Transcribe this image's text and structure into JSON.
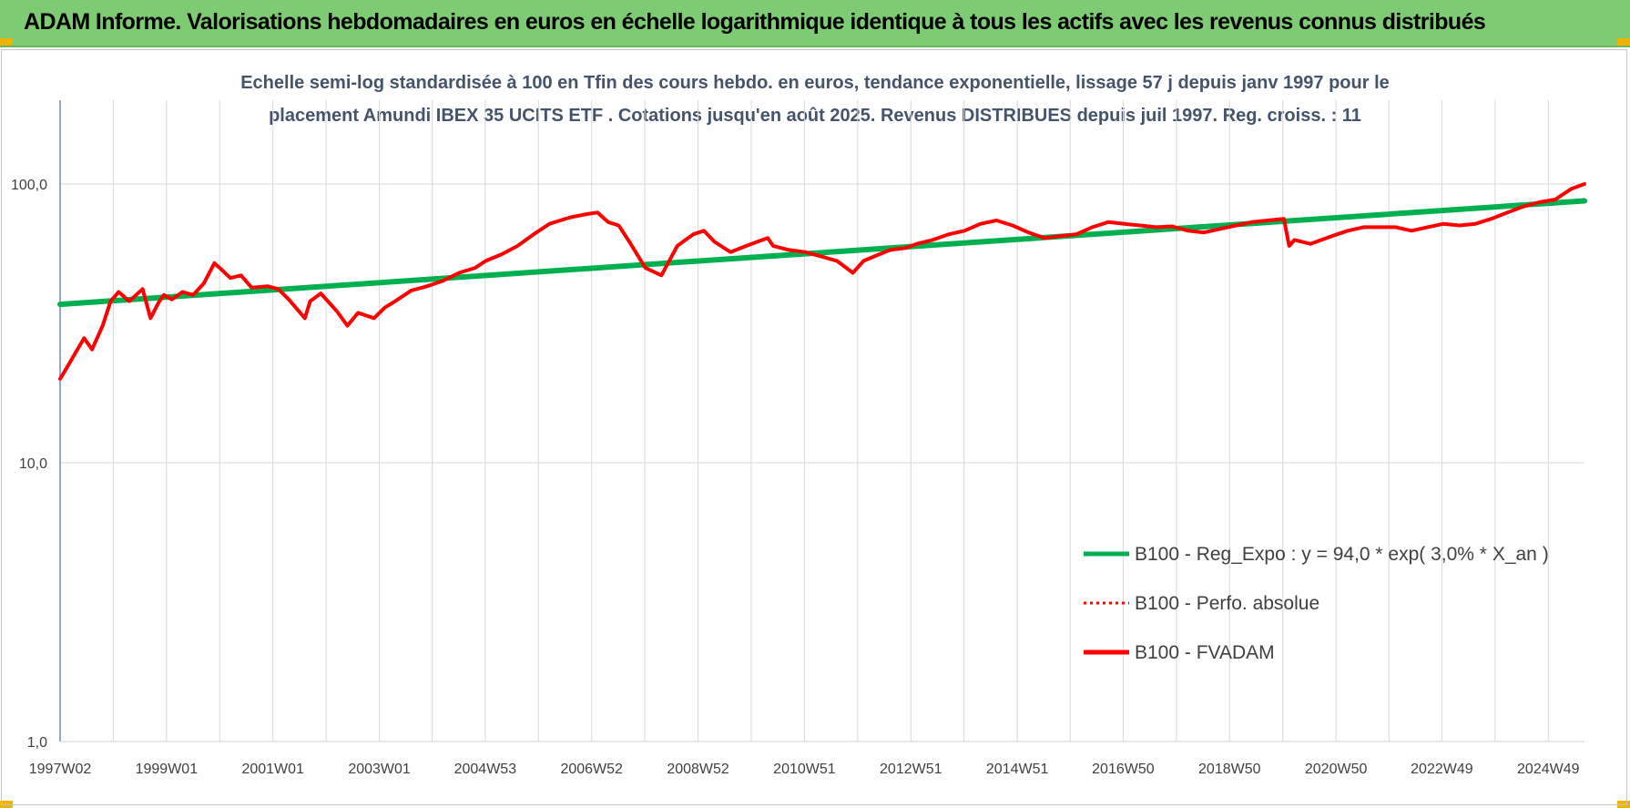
{
  "banner": {
    "title": "ADAM Informe. Valorisations hebdomadaires en euros en échelle logarithmique identique à tous les actifs avec les revenus connus distribués"
  },
  "colors": {
    "banner_bg": "#7dcb72",
    "corner_accent": "#f0b400",
    "trend_line": "#00b050",
    "fvadam_line": "#ff0000",
    "perfo_line": "#ff0000",
    "title_text": "#44546a",
    "grid": "#d9d9d9",
    "y_axis": "#4472c4"
  },
  "chart_data": {
    "type": "line",
    "title_lines": [
      "Echelle semi-log standardisée à 100 en Tfin des cours hebdo. en euros, tendance exponentielle, lissage 57 j depuis janv 1997 pour le",
      "placement Amundi IBEX 35 UCITS ETF . Cotations jusqu'en août 2025. Revenus DISTRIBUES depuis juil 1997. Reg. croiss. : 11"
    ],
    "y_scale": "log",
    "ylim": [
      1,
      200
    ],
    "y_ticks": [
      1,
      10,
      100
    ],
    "y_tick_labels": [
      "1,0",
      "10,0",
      "100,0"
    ],
    "xlim": [
      1997.0,
      2025.65
    ],
    "x_ticks": [
      1997.0,
      1999.0,
      2001.0,
      2003.0,
      2004.99,
      2006.99,
      2008.99,
      2010.99,
      2012.99,
      2014.99,
      2016.98,
      2018.98,
      2020.98,
      2022.97,
      2024.97
    ],
    "x_tick_labels": [
      "1997W02",
      "1999W01",
      "2001W01",
      "2003W01",
      "2004W53",
      "2006W52",
      "2008W52",
      "2010W51",
      "2012W51",
      "2014W51",
      "2016W50",
      "2018W50",
      "2020W50",
      "2022W49",
      "2024W49"
    ],
    "grid": true,
    "legend_position": "bottom-right",
    "series": [
      {
        "name": "B100 - Reg_Expo : y = 94,0 * exp( 3,0% *  X_an )",
        "style": "solid",
        "color": "#00b050",
        "x": [
          1997.0,
          2025.65
        ],
        "values": [
          37.0,
          87.0
        ]
      },
      {
        "name": "B100 - Perfo. absolue",
        "style": "dotted",
        "color": "#ff0000",
        "x": [],
        "values": []
      },
      {
        "name": "B100 - FVADAM",
        "style": "solid",
        "color": "#ff0000",
        "x": [
          1997.0,
          1997.1,
          1997.3,
          1997.45,
          1997.6,
          1997.8,
          1997.95,
          1998.1,
          1998.3,
          1998.55,
          1998.7,
          1998.85,
          1998.95,
          1999.1,
          1999.3,
          1999.5,
          1999.7,
          1999.9,
          2000.0,
          2000.2,
          2000.4,
          2000.6,
          2000.9,
          2001.1,
          2001.3,
          2001.6,
          2001.7,
          2001.9,
          2002.2,
          2002.4,
          2002.6,
          2002.9,
          2003.1,
          2003.3,
          2003.6,
          2003.9,
          2004.2,
          2004.5,
          2004.8,
          2005.0,
          2005.3,
          2005.6,
          2005.9,
          2006.2,
          2006.4,
          2006.6,
          2006.9,
          2007.1,
          2007.3,
          2007.5,
          2007.7,
          2008.0,
          2008.3,
          2008.6,
          2008.9,
          2009.1,
          2009.3,
          2009.6,
          2009.9,
          2010.1,
          2010.3,
          2010.4,
          2010.7,
          2011.0,
          2011.3,
          2011.6,
          2011.9,
          2012.1,
          2012.4,
          2012.6,
          2012.9,
          2013.1,
          2013.4,
          2013.7,
          2014.0,
          2014.3,
          2014.6,
          2014.9,
          2015.2,
          2015.5,
          2015.8,
          2016.1,
          2016.4,
          2016.7,
          2017.0,
          2017.3,
          2017.6,
          2017.9,
          2018.2,
          2018.5,
          2018.8,
          2019.1,
          2019.4,
          2019.7,
          2020.0,
          2020.1,
          2020.2,
          2020.5,
          2020.9,
          2021.2,
          2021.5,
          2021.8,
          2022.1,
          2022.4,
          2022.7,
          2023.0,
          2023.3,
          2023.6,
          2023.9,
          2024.2,
          2024.5,
          2024.8,
          2025.1,
          2025.4,
          2025.65
        ],
        "values": [
          20.0,
          21.5,
          25.0,
          28.0,
          25.5,
          31.0,
          38.0,
          41.0,
          38.0,
          42.0,
          33.0,
          37.5,
          40.0,
          38.5,
          41.0,
          40.0,
          44.0,
          52.0,
          50.0,
          46.0,
          47.0,
          42.5,
          43.0,
          42.0,
          38.5,
          33.0,
          38.0,
          40.5,
          35.0,
          31.0,
          34.5,
          33.0,
          36.0,
          38.0,
          41.5,
          43.0,
          45.0,
          48.0,
          50.0,
          53.0,
          56.0,
          60.0,
          66.0,
          72.0,
          74.0,
          76.0,
          78.0,
          79.0,
          73.0,
          71.0,
          62.0,
          50.0,
          47.0,
          60.0,
          66.0,
          68.0,
          62.0,
          57.0,
          60.0,
          62.0,
          64.0,
          60.0,
          58.0,
          57.0,
          55.0,
          53.0,
          48.0,
          53.0,
          56.0,
          58.0,
          59.0,
          61.0,
          63.0,
          66.0,
          68.0,
          72.0,
          74.0,
          71.0,
          67.0,
          64.0,
          65.0,
          66.0,
          70.0,
          73.0,
          72.0,
          71.0,
          70.0,
          70.5,
          68.0,
          67.0,
          69.0,
          71.0,
          73.0,
          74.0,
          75.0,
          60.0,
          63.0,
          61.0,
          65.0,
          68.0,
          70.0,
          70.0,
          70.0,
          68.0,
          70.0,
          72.0,
          71.0,
          72.0,
          75.0,
          79.0,
          83.0,
          86.0,
          88.0,
          96.0,
          100.0
        ]
      }
    ]
  }
}
